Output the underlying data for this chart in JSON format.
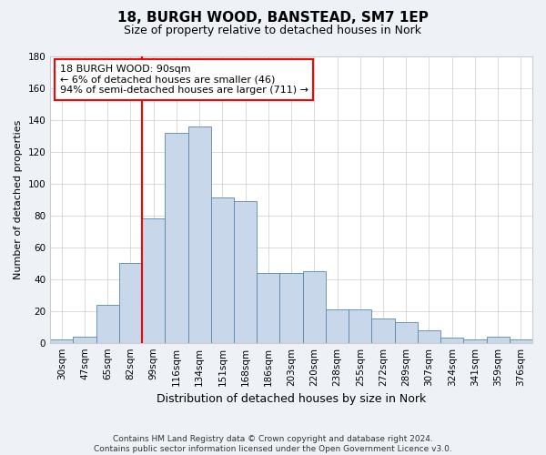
{
  "title": "18, BURGH WOOD, BANSTEAD, SM7 1EP",
  "subtitle": "Size of property relative to detached houses in Nork",
  "xlabel": "Distribution of detached houses by size in Nork",
  "ylabel": "Number of detached properties",
  "bin_labels": [
    "30sqm",
    "47sqm",
    "65sqm",
    "82sqm",
    "99sqm",
    "116sqm",
    "134sqm",
    "151sqm",
    "168sqm",
    "186sqm",
    "203sqm",
    "220sqm",
    "238sqm",
    "255sqm",
    "272sqm",
    "289sqm",
    "307sqm",
    "324sqm",
    "341sqm",
    "359sqm",
    "376sqm"
  ],
  "bar_values": [
    2,
    4,
    24,
    50,
    78,
    132,
    136,
    91,
    89,
    44,
    44,
    45,
    21,
    21,
    15,
    13,
    8,
    3,
    2,
    4,
    2
  ],
  "bar_color": "#c8d8ea",
  "bar_edge_color": "#5588aa",
  "property_line_bin_index": 3.5,
  "annotation_text": "18 BURGH WOOD: 90sqm\n← 6% of detached houses are smaller (46)\n94% of semi-detached houses are larger (711) →",
  "annotation_box_color": "white",
  "annotation_box_edge_color": "red",
  "line_color": "red",
  "ylim": [
    0,
    180
  ],
  "yticks": [
    0,
    20,
    40,
    60,
    80,
    100,
    120,
    140,
    160,
    180
  ],
  "footer_text": "Contains HM Land Registry data © Crown copyright and database right 2024.\nContains public sector information licensed under the Open Government Licence v3.0.",
  "background_color": "#eef2f7",
  "plot_background_color": "white",
  "grid_color": "#cccccc",
  "title_fontsize": 11,
  "subtitle_fontsize": 9,
  "xlabel_fontsize": 9,
  "ylabel_fontsize": 8,
  "tick_fontsize": 7.5,
  "footer_fontsize": 6.5
}
